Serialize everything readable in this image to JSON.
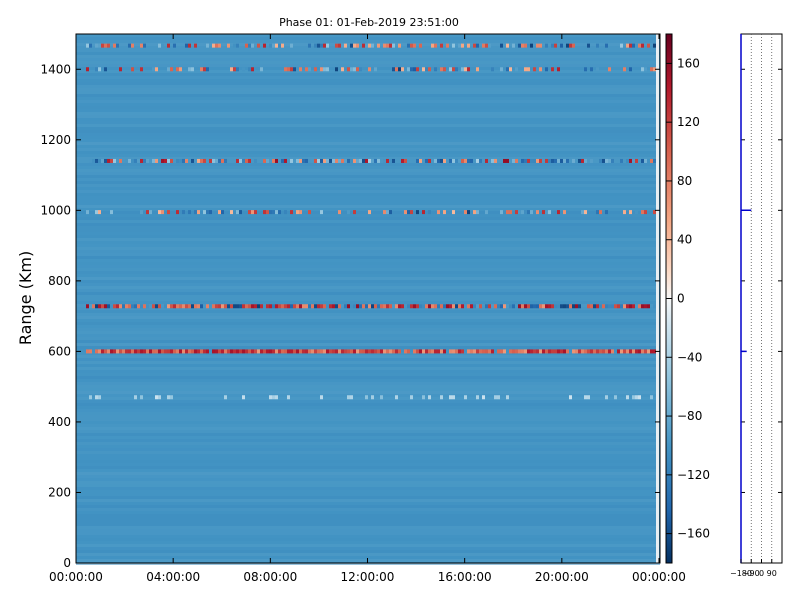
{
  "chart_data": [
    {
      "type": "heatmap",
      "title": "Phase 01: 01-Feb-2019 23:51:00",
      "ylabel": "Range (Km)",
      "xlabel": "",
      "ylim": [
        0,
        1500
      ],
      "xlim": [
        "00:00:00",
        "24:00:00"
      ],
      "x_tick_labels": [
        "00:00:00",
        "04:00:00",
        "08:00:00",
        "12:00:00",
        "16:00:00",
        "20:00:00",
        "00:00:00"
      ],
      "y_ticks": [
        0,
        200,
        400,
        600,
        800,
        1000,
        1200,
        1400
      ],
      "background_phase": -100,
      "bands": [
        {
          "range": 1467,
          "intensity": 0.6,
          "note": "sparse"
        },
        {
          "range": 1400,
          "intensity": 0.5,
          "note": "sparse"
        },
        {
          "range": 1140,
          "intensity": 0.8,
          "note": "mixed"
        },
        {
          "range": 995,
          "intensity": 0.4,
          "note": "sparse"
        },
        {
          "range": 728,
          "intensity": 1.0,
          "note": "strong mixed"
        },
        {
          "range": 600,
          "intensity": 1.0,
          "note": "strong red"
        },
        {
          "range": 470,
          "intensity": 0.2,
          "note": "faint"
        }
      ],
      "grid": false
    },
    {
      "type": "colorbar",
      "colormap": "RdBu_r",
      "ticks": [
        160,
        120,
        80,
        40,
        0,
        -40,
        -80,
        -120,
        -160
      ],
      "range": [
        -180,
        180
      ]
    },
    {
      "type": "line",
      "x_tick_labels": [
        "−180",
        "−90",
        "0",
        "90"
      ],
      "xlim": [
        -180,
        180
      ],
      "ylim": [
        0,
        1500
      ],
      "x": [
        -180,
        -180,
        -130,
        -180,
        -180,
        -180,
        -180,
        -180,
        -90,
        -180,
        -180
      ],
      "y": [
        0,
        600,
        600,
        600,
        840,
        840,
        1000,
        1000,
        1000,
        1000,
        1500
      ],
      "segments_note": "profile of phase vs range"
    }
  ]
}
